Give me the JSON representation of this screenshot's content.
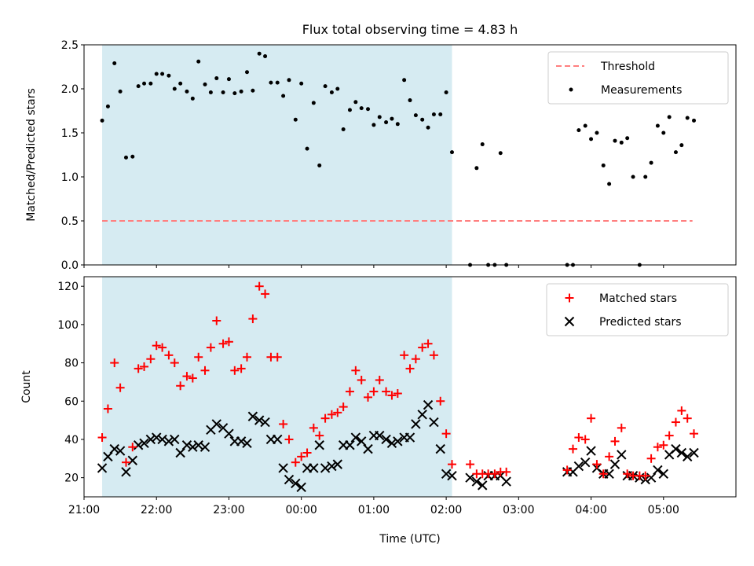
{
  "chart_data": [
    {
      "type": "scatter",
      "title": "Flux total observing time = 4.83 h",
      "xlabel": "",
      "ylabel": "Matched/Predicted stars",
      "ylim": [
        0,
        2.5
      ],
      "yticks": [
        "0.0",
        "0.5",
        "1.0",
        "1.5",
        "2.0",
        "2.5"
      ],
      "xlim_hours": [
        21.0,
        30.0
      ],
      "shaded_span_hours": [
        21.25,
        26.08
      ],
      "threshold": {
        "name": "Threshold",
        "value": 0.5,
        "x_range_hours": [
          21.25,
          29.4
        ],
        "color": "#ff7f7f"
      },
      "legend": {
        "position": "top-right",
        "entries": [
          "Threshold",
          "Measurements"
        ]
      },
      "series": [
        {
          "name": "Measurements",
          "color": "#000000",
          "x_hours": [
            21.25,
            21.33,
            21.42,
            21.5,
            21.58,
            21.67,
            21.75,
            21.83,
            21.92,
            22.0,
            22.08,
            22.17,
            22.25,
            22.33,
            22.42,
            22.5,
            22.58,
            22.67,
            22.75,
            22.83,
            22.92,
            23.0,
            23.08,
            23.17,
            23.25,
            23.33,
            23.42,
            23.5,
            23.58,
            23.67,
            23.75,
            23.83,
            23.92,
            24.0,
            24.08,
            24.17,
            24.25,
            24.33,
            24.42,
            24.5,
            24.58,
            24.67,
            24.75,
            24.83,
            24.92,
            25.0,
            25.08,
            25.17,
            25.25,
            25.33,
            25.42,
            25.5,
            25.58,
            25.67,
            25.75,
            25.83,
            25.92,
            26.0,
            26.08,
            26.33,
            26.42,
            26.5,
            26.58,
            26.67,
            26.75,
            26.83,
            27.67,
            27.75,
            27.83,
            27.92,
            28.0,
            28.08,
            28.17,
            28.25,
            28.33,
            28.42,
            28.5,
            28.58,
            28.67,
            28.75,
            28.83,
            28.92,
            29.0,
            29.08,
            29.17,
            29.25,
            29.33,
            29.42
          ],
          "values": [
            1.64,
            1.8,
            2.29,
            1.97,
            1.22,
            1.23,
            2.03,
            2.06,
            2.06,
            2.17,
            2.17,
            2.15,
            2.0,
            2.06,
            1.97,
            1.89,
            2.31,
            2.05,
            1.96,
            2.12,
            1.96,
            2.11,
            1.95,
            1.97,
            2.19,
            1.98,
            2.4,
            2.37,
            2.07,
            2.07,
            1.92,
            2.1,
            1.65,
            2.06,
            1.32,
            1.84,
            1.13,
            2.03,
            1.96,
            2.0,
            1.54,
            1.76,
            1.85,
            1.78,
            1.77,
            1.59,
            1.68,
            1.62,
            1.66,
            1.6,
            2.1,
            1.87,
            1.7,
            1.65,
            1.56,
            1.71,
            1.71,
            1.96,
            1.28,
            0.0,
            1.1,
            1.37,
            0.0,
            0.0,
            1.27,
            0.0,
            0.0,
            0.0,
            1.53,
            1.58,
            1.43,
            1.5,
            1.13,
            0.92,
            1.41,
            1.39,
            1.44,
            1.0,
            0.0,
            1.0,
            1.16,
            1.58,
            1.5,
            1.68,
            1.28,
            1.36,
            1.67,
            1.64
          ]
        }
      ]
    },
    {
      "type": "scatter",
      "title": "",
      "xlabel": "Time (UTC)",
      "ylabel": "Count",
      "ylim": [
        10,
        125
      ],
      "yticks": [
        "20",
        "40",
        "60",
        "80",
        "100",
        "120"
      ],
      "xticks": [
        "21:00",
        "22:00",
        "23:00",
        "00:00",
        "01:00",
        "02:00",
        "03:00",
        "04:00",
        "05:00"
      ],
      "xtick_hours": [
        21,
        22,
        23,
        24,
        25,
        26,
        27,
        28,
        29
      ],
      "xlim_hours": [
        21.0,
        30.0
      ],
      "shaded_span_hours": [
        21.25,
        26.08
      ],
      "legend": {
        "position": "top-right",
        "entries": [
          "Matched stars",
          "Predicted stars"
        ]
      },
      "series": [
        {
          "name": "Matched stars",
          "marker": "plus",
          "color": "#ff0000",
          "x_hours": [
            21.25,
            21.33,
            21.42,
            21.5,
            21.58,
            21.67,
            21.75,
            21.83,
            21.92,
            22.0,
            22.08,
            22.17,
            22.25,
            22.33,
            22.42,
            22.5,
            22.58,
            22.67,
            22.75,
            22.83,
            22.92,
            23.0,
            23.08,
            23.17,
            23.25,
            23.33,
            23.42,
            23.5,
            23.58,
            23.67,
            23.75,
            23.83,
            23.92,
            24.0,
            24.08,
            24.17,
            24.25,
            24.33,
            24.42,
            24.5,
            24.58,
            24.67,
            24.75,
            24.83,
            24.92,
            25.0,
            25.08,
            25.17,
            25.25,
            25.33,
            25.42,
            25.5,
            25.58,
            25.67,
            25.75,
            25.83,
            25.92,
            26.0,
            26.08,
            26.33,
            26.42,
            26.5,
            26.58,
            26.67,
            26.75,
            26.83,
            27.67,
            27.75,
            27.83,
            27.92,
            28.0,
            28.08,
            28.17,
            28.25,
            28.33,
            28.42,
            28.5,
            28.58,
            28.67,
            28.75,
            28.83,
            28.92,
            29.0,
            29.08,
            29.17,
            29.25,
            29.33,
            29.42
          ],
          "values": [
            41,
            56,
            80,
            67,
            28,
            36,
            77,
            78,
            82,
            89,
            88,
            84,
            80,
            68,
            73,
            72,
            83,
            76,
            88,
            102,
            90,
            91,
            76,
            77,
            83,
            103,
            120,
            116,
            83,
            83,
            48,
            40,
            28,
            31,
            33,
            46,
            42,
            51,
            53,
            54,
            57,
            65,
            76,
            71,
            62,
            65,
            71,
            65,
            63,
            64,
            84,
            77,
            82,
            88,
            90,
            84,
            60,
            43,
            27,
            27,
            22,
            22,
            22,
            22,
            23,
            23,
            24,
            35,
            41,
            40,
            51,
            27,
            22,
            31,
            39,
            46,
            22,
            21,
            21,
            21,
            30,
            36,
            37,
            42,
            49,
            55,
            51,
            43
          ]
        },
        {
          "name": "Predicted stars",
          "marker": "x",
          "color": "#000000",
          "x_hours": [
            21.25,
            21.33,
            21.42,
            21.5,
            21.58,
            21.67,
            21.75,
            21.83,
            21.92,
            22.0,
            22.08,
            22.17,
            22.25,
            22.33,
            22.42,
            22.5,
            22.58,
            22.67,
            22.75,
            22.83,
            22.92,
            23.0,
            23.08,
            23.17,
            23.25,
            23.33,
            23.42,
            23.5,
            23.58,
            23.67,
            23.75,
            23.83,
            23.92,
            24.0,
            24.08,
            24.17,
            24.25,
            24.33,
            24.42,
            24.5,
            24.58,
            24.67,
            24.75,
            24.83,
            24.92,
            25.0,
            25.08,
            25.17,
            25.25,
            25.33,
            25.42,
            25.5,
            25.58,
            25.67,
            25.75,
            25.83,
            25.92,
            26.0,
            26.08,
            26.33,
            26.42,
            26.5,
            26.58,
            26.67,
            26.75,
            26.83,
            27.67,
            27.75,
            27.83,
            27.92,
            28.0,
            28.08,
            28.17,
            28.25,
            28.33,
            28.42,
            28.5,
            28.58,
            28.67,
            28.75,
            28.83,
            28.92,
            29.0,
            29.08,
            29.17,
            29.25,
            29.33,
            29.42
          ],
          "values": [
            25,
            31,
            35,
            34,
            23,
            29,
            37,
            38,
            40,
            41,
            40,
            39,
            40,
            33,
            37,
            36,
            37,
            36,
            45,
            48,
            46,
            43,
            39,
            39,
            38,
            52,
            50,
            49,
            40,
            40,
            25,
            19,
            17,
            15,
            25,
            25,
            37,
            25,
            26,
            27,
            37,
            37,
            41,
            39,
            35,
            42,
            42,
            40,
            38,
            39,
            41,
            41,
            48,
            53,
            58,
            49,
            35,
            22,
            21,
            20,
            18,
            16,
            21,
            21,
            21,
            18,
            23,
            23,
            26,
            28,
            34,
            25,
            22,
            22,
            27,
            32,
            21,
            21,
            20,
            19,
            20,
            24,
            22,
            32,
            35,
            33,
            31,
            33
          ]
        }
      ]
    }
  ]
}
